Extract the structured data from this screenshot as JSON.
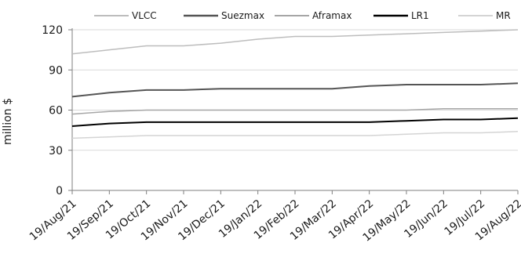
{
  "chart_data": {
    "type": "line",
    "title": "",
    "xlabel": "",
    "ylabel": "million $",
    "ylim": [
      0,
      120
    ],
    "yticks": [
      0,
      30,
      60,
      90,
      120
    ],
    "grid": "horizontal",
    "legend_position": "top",
    "categories": [
      "19/Aug/21",
      "19/Sep/21",
      "19/Oct/21",
      "19/Nov/21",
      "19/Dec/21",
      "19/Jan/22",
      "19/Feb/22",
      "19/Mar/22",
      "19/Apr/22",
      "19/May/22",
      "19/Jun/22",
      "19/Jul/22",
      "19/Aug/22"
    ],
    "series": [
      {
        "name": "VLCC",
        "color": "#bdbdbd",
        "stroke": 1.5,
        "values": [
          102,
          105,
          108,
          108,
          110,
          113,
          115,
          115,
          116,
          117,
          118,
          119,
          120
        ]
      },
      {
        "name": "Suezmax",
        "color": "#555555",
        "stroke": 2,
        "values": [
          70,
          73,
          75,
          75,
          76,
          76,
          76,
          76,
          78,
          79,
          79,
          79,
          80
        ]
      },
      {
        "name": "Aframax",
        "color": "#a6a6a6",
        "stroke": 1.5,
        "values": [
          57,
          59,
          60,
          60,
          60,
          60,
          60,
          60,
          60,
          60,
          61,
          61,
          61
        ]
      },
      {
        "name": "LR1",
        "color": "#000000",
        "stroke": 2,
        "values": [
          48,
          50,
          51,
          51,
          51,
          51,
          51,
          51,
          51,
          52,
          53,
          53,
          54
        ]
      },
      {
        "name": "MR",
        "color": "#d4d4d4",
        "stroke": 1.5,
        "values": [
          39,
          40,
          41,
          41,
          41,
          41,
          41,
          41,
          41,
          42,
          43,
          43,
          44
        ]
      }
    ]
  }
}
